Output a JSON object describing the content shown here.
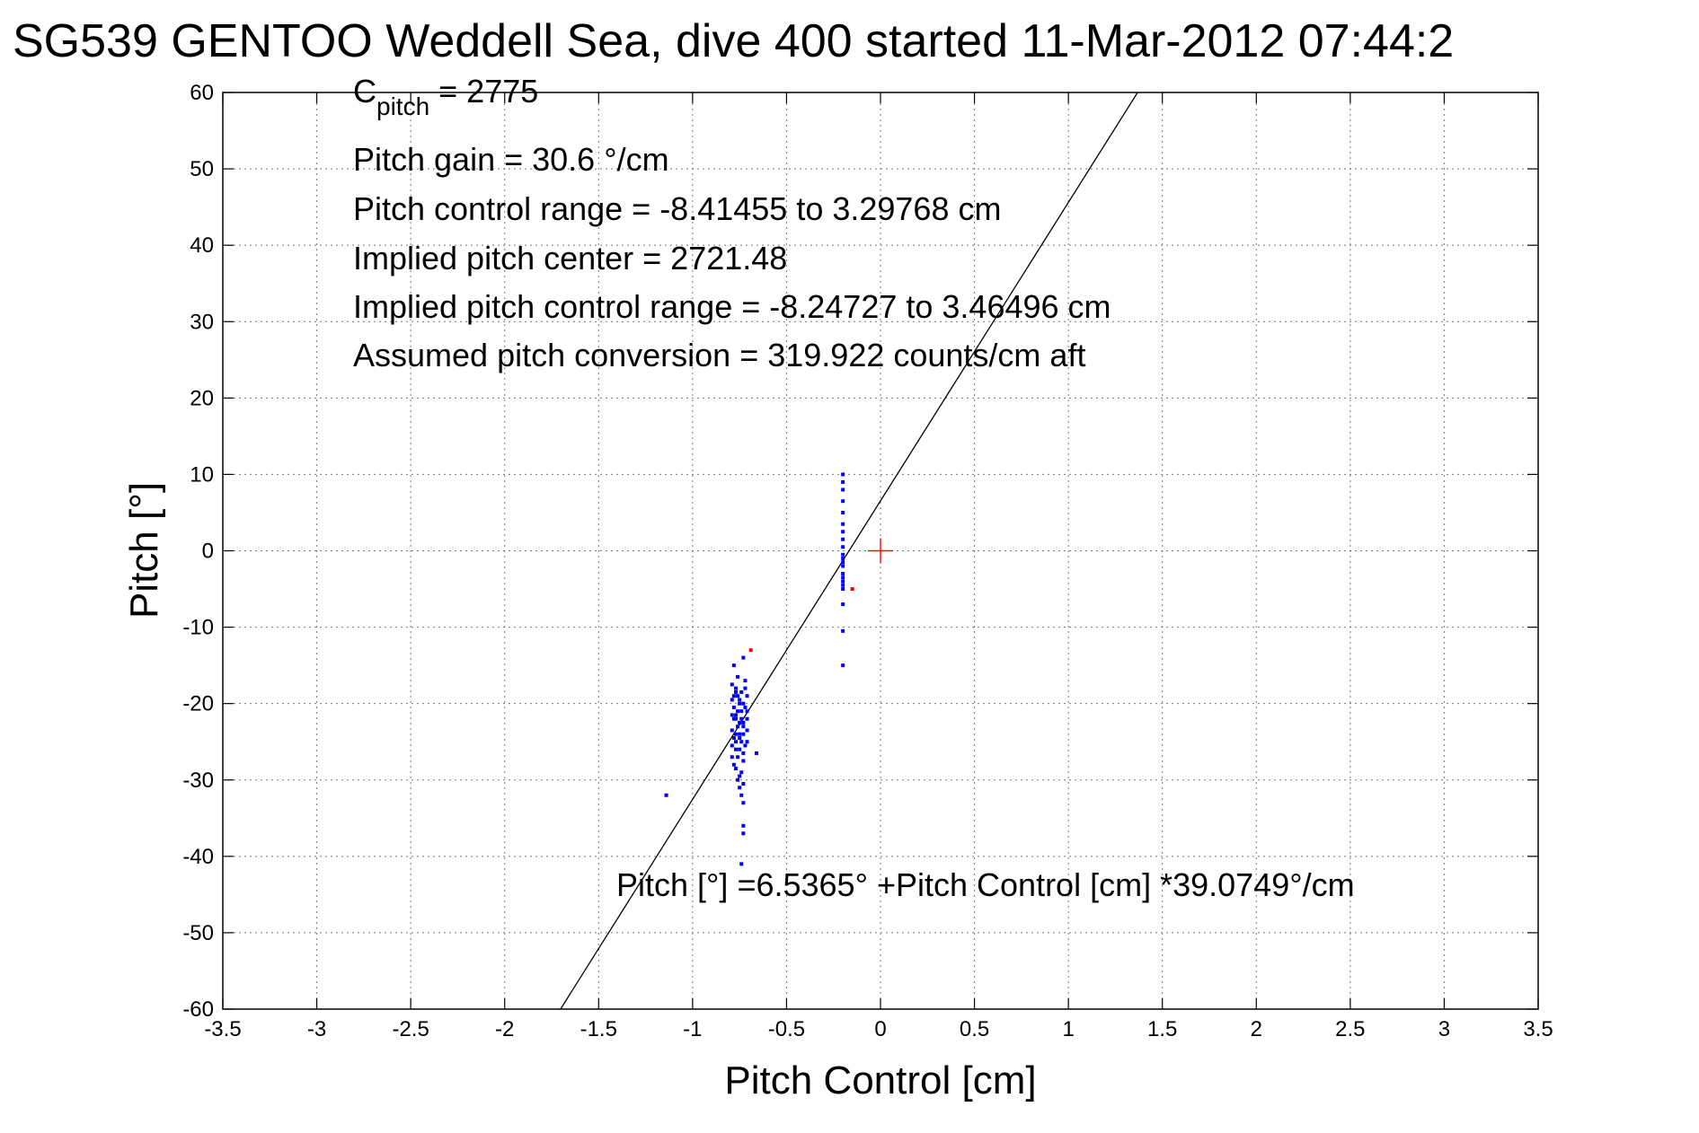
{
  "chart_data": {
    "type": "scatter",
    "title": "SG539 GENTOO Weddell Sea, dive 400 started 11-Mar-2012 07:44:2",
    "xlabel": "Pitch Control [cm]",
    "ylabel": "Pitch [°]",
    "xlim": [
      -3.5,
      3.5
    ],
    "ylim": [
      -60,
      60
    ],
    "grid": true,
    "x_ticks": [
      -3.5,
      -3,
      -2.5,
      -2,
      -1.5,
      -1,
      -0.5,
      0,
      0.5,
      1,
      1.5,
      2,
      2.5,
      3,
      3.5
    ],
    "y_ticks": [
      -60,
      -50,
      -40,
      -30,
      -20,
      -10,
      0,
      10,
      20,
      30,
      40,
      50,
      60
    ],
    "annotations": {
      "c_pitch_prefix": "C",
      "c_pitch_sub": "pitch",
      "c_pitch_value": " = 2775",
      "pitch_gain": "Pitch gain = 30.6 °/cm",
      "pitch_control_range": "Pitch control range = -8.41455 to 3.29768 cm",
      "implied_pitch_center": "Implied pitch center = 2721.48",
      "implied_pitch_control_range": "Implied pitch control range = -8.24727 to 3.46496 cm",
      "assumed_pitch_conversion": "Assumed pitch conversion = 319.922 counts/cm aft",
      "fit_equation": "Pitch [°] =6.5365° +Pitch Control [cm] *39.0749°/cm"
    },
    "fit_line": {
      "intercept": 6.5365,
      "slope": 39.0749,
      "color": "#000000"
    },
    "center_marker": {
      "x": 0,
      "y": 0,
      "color": "#ff0000"
    },
    "series": [
      {
        "color": "#0000ff",
        "points": [
          [
            -1.14,
            -32.0
          ],
          [
            -0.66,
            -26.5
          ],
          [
            -0.2,
            10.0
          ],
          [
            -0.2,
            9.0
          ],
          [
            -0.2,
            8.0
          ],
          [
            -0.2,
            6.5
          ],
          [
            -0.2,
            5.0
          ],
          [
            -0.2,
            3.5
          ],
          [
            -0.2,
            2.5
          ],
          [
            -0.2,
            1.5
          ],
          [
            -0.2,
            0.5
          ],
          [
            -0.2,
            -0.5
          ],
          [
            -0.2,
            -1.0
          ],
          [
            -0.2,
            -1.5
          ],
          [
            -0.2,
            -2.0
          ],
          [
            -0.2,
            -3.0
          ],
          [
            -0.2,
            -3.5
          ],
          [
            -0.2,
            -4.0
          ],
          [
            -0.2,
            -4.5
          ],
          [
            -0.2,
            -5.0
          ],
          [
            -0.2,
            -7.0
          ],
          [
            -0.2,
            -10.5
          ],
          [
            -0.2,
            -15.0
          ],
          [
            -0.78,
            -15.0
          ],
          [
            -0.73,
            -14.0
          ],
          [
            -0.76,
            -16.5
          ],
          [
            -0.72,
            -17.0
          ],
          [
            -0.77,
            -18.0
          ],
          [
            -0.78,
            -19.0
          ],
          [
            -0.75,
            -20.0
          ],
          [
            -0.72,
            -20.5
          ],
          [
            -0.74,
            -21.0
          ],
          [
            -0.77,
            -21.5
          ],
          [
            -0.78,
            -22.0
          ],
          [
            -0.73,
            -22.5
          ],
          [
            -0.76,
            -23.0
          ],
          [
            -0.71,
            -23.5
          ],
          [
            -0.75,
            -24.0
          ],
          [
            -0.78,
            -24.5
          ],
          [
            -0.74,
            -25.0
          ],
          [
            -0.72,
            -25.5
          ],
          [
            -0.77,
            -26.0
          ],
          [
            -0.76,
            -27.0
          ],
          [
            -0.73,
            -27.5
          ],
          [
            -0.78,
            -28.0
          ],
          [
            -0.74,
            -29.0
          ],
          [
            -0.76,
            -30.0
          ],
          [
            -0.73,
            -30.5
          ],
          [
            -0.75,
            -31.0
          ],
          [
            -0.74,
            -32.0
          ],
          [
            -0.73,
            -33.0
          ],
          [
            -0.73,
            -36.0
          ],
          [
            -0.73,
            -37.0
          ],
          [
            -0.74,
            -41.0
          ],
          [
            -0.79,
            -17.5
          ],
          [
            -0.77,
            -18.5
          ],
          [
            -0.75,
            -19.5
          ],
          [
            -0.73,
            -20.0
          ],
          [
            -0.71,
            -21.0
          ],
          [
            -0.79,
            -21.5
          ],
          [
            -0.77,
            -22.0
          ],
          [
            -0.75,
            -22.5
          ],
          [
            -0.73,
            -23.0
          ],
          [
            -0.71,
            -22.0
          ],
          [
            -0.79,
            -23.5
          ],
          [
            -0.77,
            -24.0
          ],
          [
            -0.75,
            -24.5
          ],
          [
            -0.73,
            -24.0
          ],
          [
            -0.71,
            -25.0
          ],
          [
            -0.79,
            -25.5
          ],
          [
            -0.77,
            -25.0
          ],
          [
            -0.75,
            -26.0
          ],
          [
            -0.73,
            -26.5
          ],
          [
            -0.79,
            -27.0
          ],
          [
            -0.77,
            -28.5
          ],
          [
            -0.75,
            -29.5
          ],
          [
            -0.79,
            -19.5
          ],
          [
            -0.71,
            -19.0
          ],
          [
            -0.72,
            -18.0
          ],
          [
            -0.76,
            -19.0
          ],
          [
            -0.74,
            -18.5
          ],
          [
            -0.78,
            -20.5
          ],
          [
            -0.76,
            -21.0
          ],
          [
            -0.74,
            -22.0
          ]
        ]
      },
      {
        "color": "#ff0000",
        "points": [
          [
            -0.69,
            -13.0
          ],
          [
            -0.15,
            -5.0
          ]
        ]
      }
    ]
  }
}
